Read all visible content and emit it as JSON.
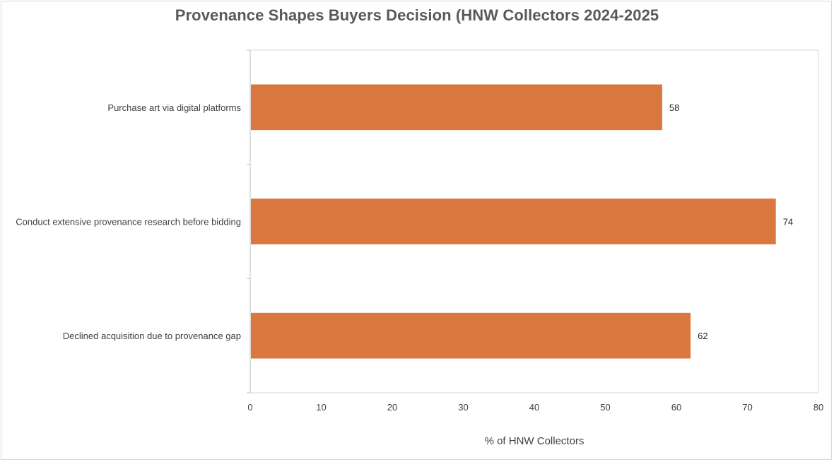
{
  "chart_data": {
    "type": "bar",
    "orientation": "horizontal",
    "title": "Provenance Shapes Buyers Decision (HNW Collectors 2024-2025",
    "categories": [
      "Purchase art via digital platforms",
      "Conduct extensive provenance research before bidding",
      "Declined acquisition due to provenance gap"
    ],
    "values": [
      58,
      74,
      62
    ],
    "xlabel": "% of HNW Collectors",
    "ylabel": "",
    "xlim": [
      0,
      80
    ],
    "xticks": [
      0,
      10,
      20,
      30,
      40,
      50,
      60,
      70,
      80
    ],
    "bar_color": "#D9773F",
    "grid": false,
    "legend": "none",
    "data_labels": true
  }
}
